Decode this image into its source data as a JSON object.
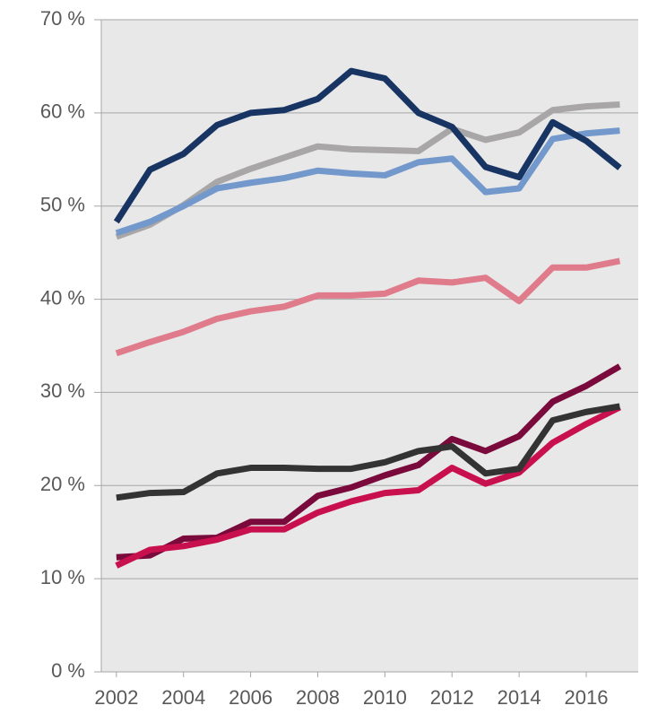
{
  "chart_data": {
    "type": "line",
    "x": [
      2002,
      2003,
      2004,
      2005,
      2006,
      2007,
      2008,
      2009,
      2010,
      2011,
      2012,
      2013,
      2014,
      2015,
      2016,
      2017
    ],
    "series": [
      {
        "color": "#e07b8c",
        "values": [
          34.2,
          35.4,
          36.5,
          37.9,
          38.7,
          39.2,
          40.4,
          40.4,
          40.6,
          42.0,
          41.8,
          42.3,
          39.8,
          43.4,
          43.4,
          44.1
        ]
      },
      {
        "color": "#a8a6a6",
        "values": [
          46.7,
          48.0,
          50.1,
          52.6,
          54.0,
          55.2,
          56.4,
          56.1,
          56.0,
          55.9,
          58.3,
          57.1,
          57.9,
          60.3,
          60.7,
          60.9
        ]
      },
      {
        "color": "#7398cb",
        "values": [
          47.1,
          48.3,
          50.0,
          51.9,
          52.5,
          53.0,
          53.8,
          53.5,
          53.3,
          54.7,
          55.1,
          51.5,
          51.9,
          57.2,
          57.8,
          58.1
        ]
      },
      {
        "color": "#173463",
        "values": [
          48.3,
          53.9,
          55.6,
          58.7,
          60.0,
          60.3,
          61.5,
          64.5,
          63.7,
          60.0,
          58.5,
          54.2,
          53.1,
          59.0,
          57.0,
          54.1
        ]
      },
      {
        "color": "#7b0a3c",
        "values": [
          12.3,
          12.5,
          14.3,
          14.4,
          16.1,
          16.1,
          18.9,
          19.8,
          21.1,
          22.2,
          25.0,
          23.7,
          25.3,
          29.0,
          30.7,
          32.8
        ]
      },
      {
        "color": "#c8104e",
        "values": [
          11.4,
          13.1,
          13.5,
          14.2,
          15.3,
          15.3,
          17.1,
          18.3,
          19.2,
          19.5,
          21.9,
          20.2,
          21.4,
          24.6,
          26.6,
          28.4
        ]
      },
      {
        "color": "#333333",
        "values": [
          18.7,
          19.2,
          19.3,
          21.3,
          21.9,
          21.9,
          21.8,
          21.8,
          22.5,
          23.7,
          24.2,
          21.3,
          21.8,
          27.0,
          27.9,
          28.5
        ]
      }
    ],
    "xlim": [
      2001.55,
      2017.55
    ],
    "xticks": [
      2002,
      2004,
      2006,
      2008,
      2010,
      2012,
      2014,
      2016
    ],
    "ylim": [
      0,
      70
    ],
    "yticks": [
      {
        "value": 0,
        "label": "0 %"
      },
      {
        "value": 10,
        "label": "10 %"
      },
      {
        "value": 20,
        "label": "20 %"
      },
      {
        "value": 30,
        "label": "30 %"
      },
      {
        "value": 40,
        "label": "40 %"
      },
      {
        "value": 50,
        "label": "50 %"
      },
      {
        "value": 60,
        "label": "60 %"
      },
      {
        "value": 70,
        "label": "70 %"
      }
    ],
    "grid": true
  }
}
